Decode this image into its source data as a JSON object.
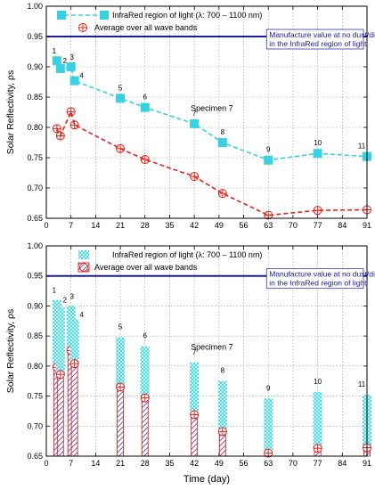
{
  "colors": {
    "infrared": "#37d1df",
    "average": "#e3241b",
    "manufacture": "#1c1ca0",
    "grid": "#9a9a9a",
    "hatch": "#3b3bb0"
  },
  "chart_data": [
    {
      "type": "line",
      "xlabel": "",
      "ylabel": "Solar Reflectivity, ρs",
      "xlim": [
        0,
        91
      ],
      "ylim": [
        0.65,
        1.0
      ],
      "xticks": [
        0,
        7,
        14,
        21,
        28,
        35,
        42,
        49,
        56,
        63,
        70,
        77,
        84,
        91
      ],
      "xtick_labels": [
        "0",
        "7",
        "14",
        "21",
        "28",
        "35",
        "42",
        "49",
        "56",
        "63",
        "70",
        "77",
        "84",
        "91"
      ],
      "yticks": [
        0.65,
        0.7,
        0.75,
        0.8,
        0.85,
        0.9,
        0.95,
        1.0
      ],
      "ytick_labels": [
        "0.65",
        "0.70",
        "0.75",
        "0.80",
        "0.85",
        "0.90",
        "0.95",
        "1.00"
      ],
      "grid": true,
      "legend_position": "top-left",
      "x": [
        3,
        4,
        7,
        8,
        21,
        28,
        42,
        50,
        63,
        77,
        91
      ],
      "point_labels": [
        "1",
        "2",
        "3",
        "4",
        "5",
        "6",
        "7",
        "8",
        "9",
        "10",
        "11"
      ],
      "series": [
        {
          "name": "InfraRed region of light (λ: 700 – 1100 nm)",
          "values": [
            0.91,
            0.897,
            0.9,
            0.877,
            0.848,
            0.833,
            0.806,
            0.775,
            0.746,
            0.757,
            0.752
          ]
        },
        {
          "name": "Average over all wave bands",
          "values": [
            0.798,
            0.786,
            0.826,
            0.804,
            0.765,
            0.747,
            0.719,
            0.691,
            0.655,
            0.663,
            0.664
          ]
        }
      ],
      "reference_line": {
        "value": 0.95,
        "label_lines": [
          "Manufacture value at no dust/dirt",
          "in the InfraRed region of light"
        ]
      },
      "annotation": "Specimen 7"
    },
    {
      "type": "bar",
      "xlabel": "Time (day)",
      "ylabel": "Solar Reflectivity, ρs",
      "xlim": [
        0,
        91
      ],
      "ylim": [
        0.65,
        1.0
      ],
      "xticks": [
        0,
        7,
        14,
        21,
        28,
        35,
        42,
        49,
        56,
        63,
        70,
        77,
        84,
        91
      ],
      "xtick_labels": [
        "0",
        "7",
        "14",
        "21",
        "28",
        "35",
        "42",
        "49",
        "56",
        "63",
        "70",
        "77",
        "84",
        "91"
      ],
      "yticks": [
        0.65,
        0.7,
        0.75,
        0.8,
        0.85,
        0.9,
        0.95,
        1.0
      ],
      "ytick_labels": [
        "0.65",
        "0.70",
        "0.75",
        "0.80",
        "0.85",
        "0.90",
        "0.95",
        "1.00"
      ],
      "grid": true,
      "legend_position": "top-left",
      "x": [
        3,
        4,
        7,
        8,
        21,
        28,
        42,
        50,
        63,
        77,
        91
      ],
      "point_labels": [
        "1",
        "2",
        "3",
        "4",
        "5",
        "6",
        "7",
        "8",
        "9",
        "10",
        "11"
      ],
      "series": [
        {
          "name": "InfraRed region of light (λ: 700 – 1100 nm)",
          "values": [
            0.91,
            0.897,
            0.9,
            0.877,
            0.848,
            0.833,
            0.806,
            0.775,
            0.746,
            0.757,
            0.752
          ]
        },
        {
          "name": "Average over all wave bands",
          "values": [
            0.798,
            0.786,
            0.826,
            0.804,
            0.765,
            0.747,
            0.719,
            0.691,
            0.655,
            0.663,
            0.664
          ]
        }
      ],
      "reference_line": {
        "value": 0.95,
        "label_lines": [
          "Manufacture value at no dust/dirt",
          "in the InfraRed region of light"
        ]
      },
      "annotation": "Specimen 7"
    }
  ]
}
